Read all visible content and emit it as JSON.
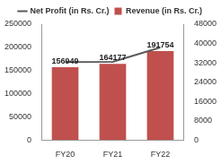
{
  "chart_data": {
    "type": "bar",
    "categories": [
      "FY20",
      "FY21",
      "FY22"
    ],
    "series": [
      {
        "name": "Revenue (in Rs. Cr.)",
        "type": "bar",
        "color": "#c0504d",
        "values": [
          156949,
          164177,
          191754
        ],
        "data_labels": true
      },
      {
        "name": "Net Profit (in Rs. Cr.)",
        "type": "line",
        "color": "#595959",
        "values": [
          32340,
          32430,
          38327
        ],
        "axis": "y2",
        "data_labels": false
      }
    ],
    "ylim": [
      0,
      250000
    ],
    "yticks": [
      0,
      50000,
      100000,
      150000,
      200000,
      250000
    ],
    "y2lim": [
      0,
      48000
    ],
    "y2ticks": [
      0,
      8000,
      16000,
      24000,
      32000,
      40000,
      48000
    ],
    "grid": false,
    "legend": "top"
  }
}
